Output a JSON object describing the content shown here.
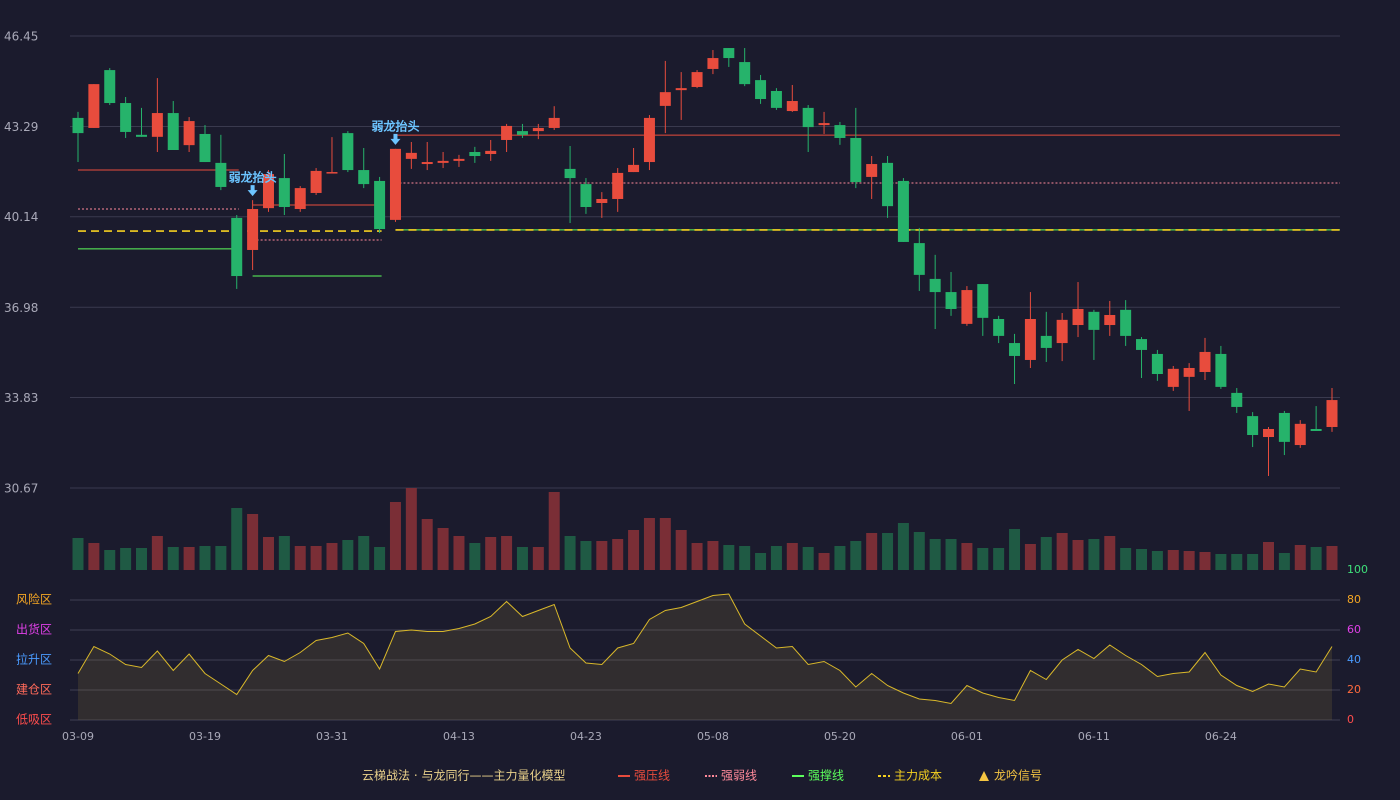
{
  "chart_data": {
    "type": "candlestick",
    "categories": [
      "03-09",
      null,
      null,
      null,
      null,
      null,
      null,
      null,
      "03-19",
      null,
      null,
      null,
      null,
      null,
      null,
      null,
      "03-31",
      null,
      null,
      null,
      null,
      null,
      null,
      null,
      "04-13",
      null,
      null,
      null,
      null,
      null,
      null,
      null,
      "04-23",
      null,
      null,
      null,
      null,
      null,
      null,
      null,
      "05-08",
      null,
      null,
      null,
      null,
      null,
      null,
      null,
      "05-20",
      null,
      null,
      null,
      null,
      null,
      null,
      null,
      "06-01",
      null,
      null,
      null,
      null,
      null,
      null,
      null,
      "06-11",
      null,
      null,
      null,
      null,
      null,
      null,
      null,
      "06-24",
      null,
      null,
      null,
      null,
      null,
      null,
      null
    ],
    "open": [
      43.59,
      43.24,
      45.26,
      44.11,
      43.0,
      42.93,
      43.76,
      42.64,
      43.03,
      42.02,
      40.1,
      38.98,
      40.44,
      41.49,
      40.41,
      40.97,
      41.66,
      43.06,
      41.77,
      41.39,
      40.03,
      42.16,
      41.98,
      42.02,
      42.09,
      42.4,
      42.33,
      42.82,
      43.13,
      43.13,
      43.24,
      41.81,
      41.28,
      40.62,
      40.76,
      41.7,
      42.05,
      44.01,
      44.56,
      44.67,
      45.3,
      46.03,
      45.54,
      44.91,
      44.53,
      43.83,
      43.94,
      43.34,
      43.34,
      42.89,
      41.53,
      42.02,
      41.39,
      39.22,
      37.97,
      37.51,
      36.4,
      37.79,
      36.57,
      35.73,
      35.14,
      35.98,
      35.73,
      36.36,
      36.82,
      36.36,
      36.89,
      35.87,
      35.35,
      34.2,
      34.55,
      34.72,
      35.35,
      33.99,
      33.18,
      32.45,
      33.29,
      32.17,
      32.73,
      32.8
    ],
    "close": [
      43.06,
      44.77,
      44.11,
      43.1,
      42.93,
      43.76,
      42.47,
      43.48,
      42.05,
      41.18,
      38.07,
      40.41,
      41.63,
      40.48,
      41.14,
      41.74,
      41.7,
      41.77,
      41.28,
      39.71,
      42.51,
      42.37,
      42.05,
      42.09,
      42.16,
      42.26,
      42.44,
      43.31,
      43.0,
      43.24,
      43.59,
      41.49,
      40.48,
      40.76,
      41.67,
      41.95,
      43.59,
      44.49,
      44.63,
      45.19,
      45.68,
      45.68,
      44.77,
      44.25,
      43.94,
      44.18,
      43.27,
      43.41,
      42.89,
      41.35,
      41.98,
      40.51,
      39.26,
      38.11,
      37.51,
      36.92,
      37.58,
      36.61,
      35.98,
      35.28,
      36.57,
      35.56,
      36.54,
      36.92,
      36.19,
      36.71,
      35.98,
      35.49,
      34.65,
      34.83,
      34.86,
      35.42,
      34.2,
      33.5,
      32.52,
      32.73,
      32.28,
      32.91,
      32.66,
      33.74
    ],
    "high": [
      43.8,
      44.77,
      45.33,
      44.32,
      43.94,
      44.98,
      44.18,
      43.62,
      43.34,
      43.0,
      40.2,
      40.72,
      41.77,
      42.33,
      41.21,
      41.84,
      42.92,
      43.13,
      42.54,
      41.53,
      42.51,
      42.75,
      42.75,
      42.4,
      42.3,
      42.58,
      42.82,
      43.38,
      43.38,
      43.38,
      44.0,
      42.61,
      41.49,
      41.0,
      41.84,
      42.54,
      43.69,
      45.58,
      45.19,
      45.26,
      45.96,
      46.03,
      46.03,
      45.09,
      44.63,
      44.74,
      44.04,
      43.8,
      43.45,
      43.94,
      42.26,
      42.26,
      41.49,
      39.75,
      38.81,
      38.21,
      37.72,
      37.79,
      36.68,
      36.05,
      37.51,
      36.82,
      36.78,
      37.86,
      36.89,
      37.2,
      37.23,
      35.94,
      35.49,
      34.93,
      35.03,
      35.91,
      35.63,
      34.16,
      33.32,
      32.8,
      33.36,
      33.04,
      33.53,
      34.16
    ],
    "low": [
      42.05,
      43.24,
      44.04,
      42.89,
      42.93,
      42.4,
      42.47,
      42.4,
      42.05,
      41.07,
      37.62,
      38.28,
      40.31,
      40.2,
      40.31,
      40.9,
      41.66,
      41.7,
      41.14,
      39.57,
      39.96,
      41.81,
      41.77,
      41.84,
      41.88,
      42.02,
      42.09,
      42.4,
      42.89,
      42.85,
      43.17,
      39.92,
      40.24,
      40.1,
      40.31,
      41.7,
      41.77,
      43.06,
      43.52,
      44.63,
      45.12,
      45.37,
      44.7,
      44.08,
      43.87,
      43.8,
      42.4,
      43.03,
      42.65,
      41.14,
      40.76,
      40.1,
      39.26,
      37.55,
      36.22,
      36.68,
      36.33,
      35.98,
      35.73,
      34.3,
      34.86,
      35.07,
      35.1,
      35.94,
      35.14,
      35.98,
      35.63,
      34.51,
      34.41,
      34.06,
      33.36,
      34.44,
      34.13,
      33.29,
      32.1,
      31.09,
      31.82,
      32.07,
      32.66,
      32.63
    ],
    "up_color": "#e84c3d",
    "down_color": "#26b36b",
    "ylim": [
      30.67,
      46.45
    ],
    "yticks": [
      30.67,
      33.83,
      36.98,
      40.14,
      43.29,
      46.45
    ],
    "grid": true,
    "volume": {
      "values": [
        32,
        27,
        20,
        22,
        22,
        34,
        23,
        23,
        24,
        24,
        62,
        56,
        33,
        34,
        24,
        24,
        27,
        30,
        34,
        23,
        68,
        82,
        51,
        42,
        34,
        27,
        33,
        34,
        23,
        23,
        78,
        34,
        29,
        29,
        31,
        40,
        52,
        52,
        40,
        27,
        29,
        25,
        24,
        17,
        24,
        27,
        23,
        17,
        24,
        29,
        37,
        37,
        47,
        38,
        31,
        31,
        27,
        22,
        22,
        41,
        26,
        33,
        37,
        30,
        31,
        34,
        22,
        21,
        19,
        20,
        19,
        18,
        16,
        16,
        16,
        28,
        17,
        25,
        23,
        24
      ],
      "up_color": "#7a2e36",
      "down_color": "#1f5a44"
    },
    "oscillator": {
      "values": [
        31,
        49,
        44,
        37,
        35,
        46,
        33,
        44,
        31,
        24,
        17,
        33,
        43,
        39,
        45,
        53,
        55,
        58,
        51,
        34,
        59,
        60,
        59,
        59,
        61,
        64,
        69,
        79,
        69,
        73,
        77,
        48,
        38,
        37,
        48,
        51,
        67,
        73,
        75,
        79,
        83,
        84,
        64,
        56,
        48,
        49,
        37,
        39,
        33,
        22,
        31,
        23,
        18,
        14,
        13,
        11,
        23,
        18,
        15,
        13,
        33,
        27,
        40,
        47,
        41,
        50,
        43,
        37,
        29,
        31,
        32,
        45,
        30,
        23,
        19,
        24,
        22,
        34,
        32,
        49
      ],
      "color": "#d9b82a",
      "ylim": [
        0,
        100
      ],
      "yticks": [
        0,
        20,
        40,
        60,
        80,
        100
      ],
      "tick_colors": [
        "#ff4d4d",
        "#ff6a3d",
        "#4a9bff",
        "#e040e8",
        "#f5a623",
        "#3ee07a"
      ],
      "zones": [
        {
          "label": "风险区",
          "value": 80,
          "color": "#f5a623"
        },
        {
          "label": "出货区",
          "value": 60,
          "color": "#e040e8"
        },
        {
          "label": "拉升区",
          "value": 40,
          "color": "#4a9bff"
        },
        {
          "label": "建仓区",
          "value": 20,
          "color": "#ff6a5a"
        },
        {
          "label": "低吸区",
          "value": 0,
          "color": "#ff4d4d"
        }
      ]
    },
    "levels": [
      {
        "name": "强压线",
        "color": "#e84c3d",
        "style": "solid",
        "segments": [
          {
            "from": 0,
            "to": 10,
            "value": 41.77
          },
          {
            "from": 11,
            "to": 19,
            "value": 40.55
          },
          {
            "from": 20,
            "to": 79,
            "value": 42.99
          }
        ]
      },
      {
        "name": "强弱线",
        "color": "#ff8a9a",
        "style": "dotted",
        "segments": [
          {
            "from": 0,
            "to": 10,
            "value": 40.41
          },
          {
            "from": 11,
            "to": 19,
            "value": 39.33
          },
          {
            "from": 20,
            "to": 79,
            "value": 41.32
          }
        ]
      },
      {
        "name": "强撑线",
        "color": "#5cff5c",
        "style": "solid",
        "segments": [
          {
            "from": 0,
            "to": 10,
            "value": 39.02
          },
          {
            "from": 11,
            "to": 19,
            "value": 38.07
          },
          {
            "from": 20,
            "to": 79,
            "value": 39.68
          }
        ]
      },
      {
        "name": "主力成本",
        "color": "#f5d020",
        "style": "dashed",
        "segments": [
          {
            "from": 0,
            "to": 19,
            "value": 39.64
          },
          {
            "from": 20,
            "to": 79,
            "value": 39.68
          }
        ]
      }
    ],
    "annotations": [
      {
        "text": "弱龙抬头",
        "index": 11
      },
      {
        "text": "弱龙抬头",
        "index": 20
      }
    ],
    "signal": {
      "name": "龙吟信号",
      "color": "#f5c542"
    },
    "legend_title": "云梯战法 · 与龙同行——主力量化模型"
  }
}
